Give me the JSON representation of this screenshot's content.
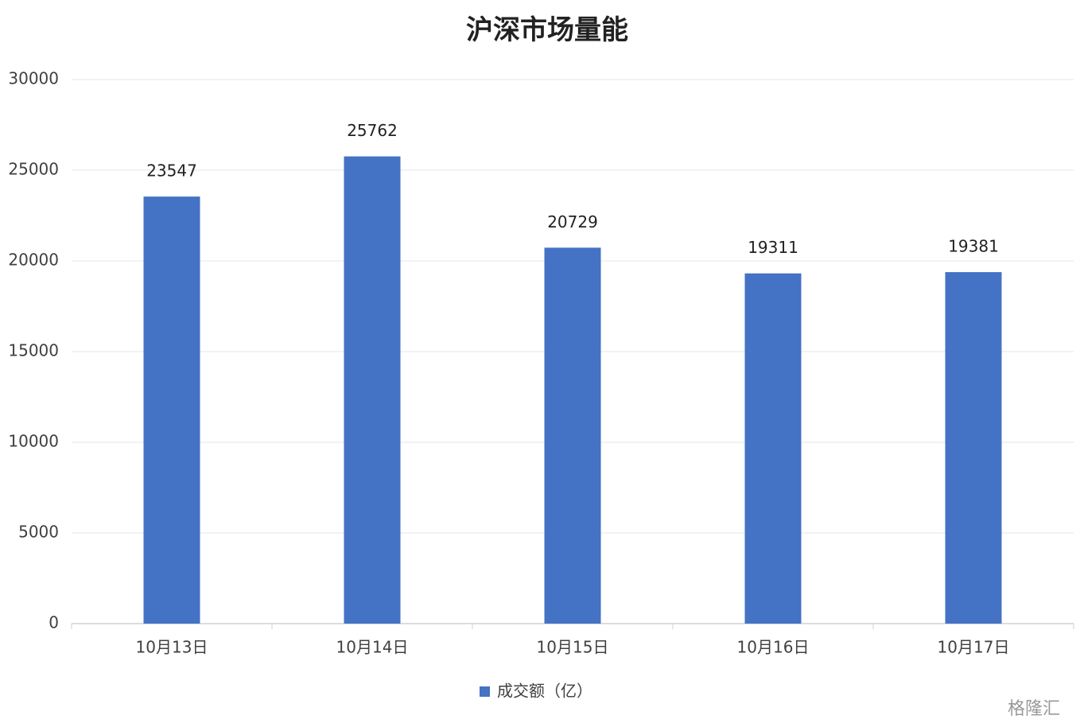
{
  "chart_data": {
    "type": "bar",
    "title": "沪深市场量能",
    "categories": [
      "10月13日",
      "10月14日",
      "10月15日",
      "10月16日",
      "10月17日"
    ],
    "series": [
      {
        "name": "成交额（亿）",
        "color": "#4472c4",
        "values": [
          23547,
          25762,
          20729,
          19311,
          19381
        ]
      }
    ],
    "ylim": [
      0,
      30000
    ],
    "yticks": [
      0,
      5000,
      10000,
      15000,
      20000,
      25000,
      30000
    ],
    "grid": true,
    "legend": "bottom",
    "watermark": "格隆汇"
  }
}
